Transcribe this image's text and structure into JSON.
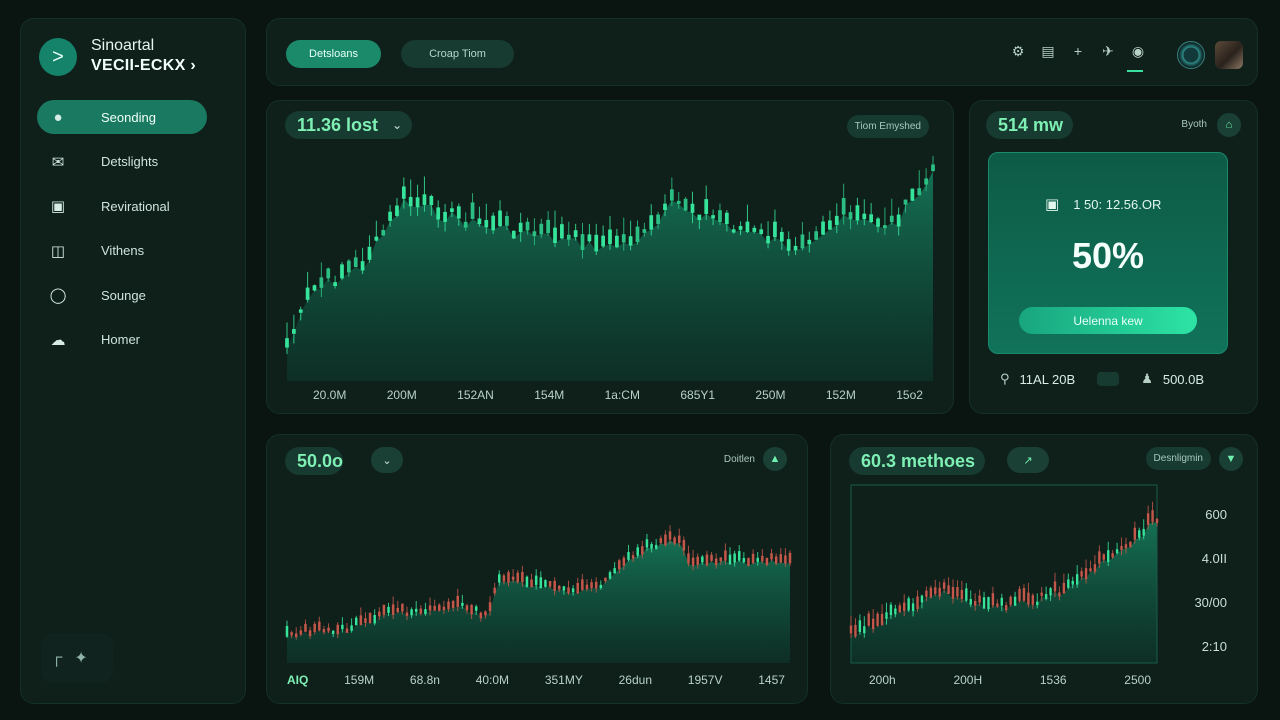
{
  "sidebar": {
    "brand_line1": "Sinoartal",
    "brand_line2": "VECII-ECKX",
    "brand_chevron": "›",
    "brand_icon": "chevron-right-icon",
    "items": [
      {
        "label": "Seonding",
        "icon": "mic-icon",
        "active": true
      },
      {
        "label": "Detslights",
        "icon": "mail-icon",
        "active": false
      },
      {
        "label": "Revirational",
        "icon": "inbox-icon",
        "active": false
      },
      {
        "label": "Vithens",
        "icon": "clipboard-icon",
        "active": false
      },
      {
        "label": "Sounge",
        "icon": "lightbulb-icon",
        "active": false
      },
      {
        "label": "Homer",
        "icon": "cloud-icon",
        "active": false
      }
    ]
  },
  "topbar": {
    "btn1": "Detsloans",
    "btn2": "Croap Tiom",
    "icons": [
      "gear-icon",
      "calendar-icon",
      "plus-icon",
      "plane-icon",
      "drop-icon"
    ]
  },
  "main_chart": {
    "value": "11.36 lost",
    "tag": "Tiom Emyshed",
    "x_labels": [
      "20.0M",
      "200M",
      "152AN",
      "154M",
      "1a:CM",
      "685Y1",
      "250M",
      "152M",
      "15o2"
    ]
  },
  "side_card": {
    "value": "514 mw",
    "tag": "Byoth",
    "lock_text": "1 50: 12.56.OR",
    "percent": "50%",
    "cta": "Uelenna kew",
    "stat1": "11AL 20B",
    "stat2": "500.0B"
  },
  "bottom_left": {
    "value": "50.0o",
    "tag": "Doitlen",
    "x_labels": [
      "AIQ",
      "159M",
      "68.8n",
      "40:0M",
      "351MY",
      "26dun",
      "1957V",
      "1457"
    ]
  },
  "bottom_right": {
    "value": "60.3 methoes",
    "tag": "Desnligmin",
    "x_labels": [
      "200h",
      "200H",
      "1536",
      "2500"
    ],
    "y_labels": [
      "600",
      "4.0II",
      "30/00",
      "2:10"
    ]
  },
  "colors": {
    "accent": "#1a8a6b",
    "up": "#35e39a",
    "down": "#c2574a",
    "area": "#0f6a50"
  }
}
